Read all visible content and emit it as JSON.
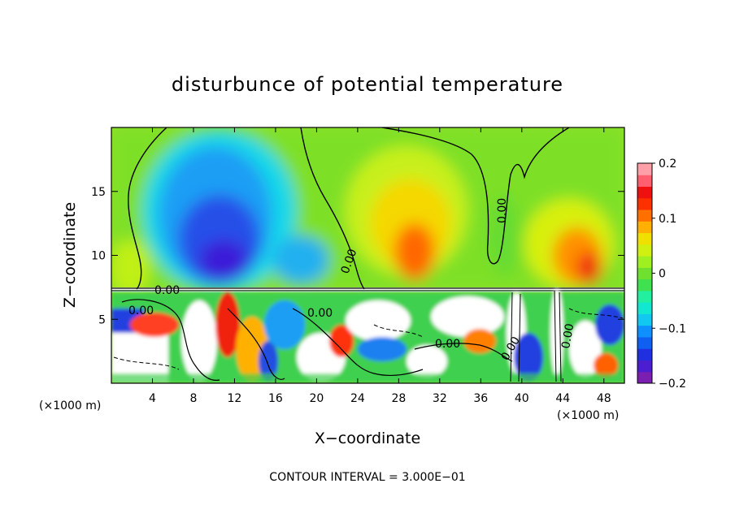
{
  "chart_data": {
    "type": "heatmap",
    "title": "disturbunce of potential temperature",
    "xlabel": "X−coordinate",
    "ylabel": "Z−coordinate",
    "x_unit": "(×1000 m)",
    "x_unit_right": "(×1000 m)",
    "contour_interval": "CONTOUR INTERVAL = 3.000E−01",
    "xlim": [
      0,
      50
    ],
    "ylim": [
      0,
      20
    ],
    "x_ticks": [
      4,
      8,
      12,
      16,
      20,
      24,
      28,
      32,
      36,
      40,
      44,
      48
    ],
    "x_tick_labels": [
      "4",
      "8",
      "12",
      "16",
      "20",
      "24",
      "28",
      "32",
      "36",
      "40",
      "44",
      "48"
    ],
    "y_ticks": [
      5,
      10,
      15
    ],
    "y_tick_labels": [
      "5",
      "10",
      "15"
    ],
    "colorbar": {
      "range": [
        -0.2,
        0.2
      ],
      "ticks": [
        0.2,
        0.1,
        0,
        -0.1,
        -0.2
      ],
      "tick_labels": [
        "0.2",
        "0.1",
        "0",
        "−0.1",
        "−0.2"
      ],
      "colors": [
        "#7a1fb0",
        "#4b1fd0",
        "#2030e0",
        "#1060f0",
        "#1090ff",
        "#10c8f0",
        "#10e8d0",
        "#20f0a0",
        "#40e050",
        "#70e030",
        "#a0f020",
        "#d0f010",
        "#f0e000",
        "#ffb000",
        "#ff7000",
        "#ff3000",
        "#f01010",
        "#ff6070",
        "#ffa0a8"
      ]
    },
    "contour_labels": [
      "0.00",
      "0.00",
      "0.00",
      "0.00",
      "0.00",
      "0.00",
      "0.00",
      "0.00"
    ],
    "stable_layer_top_z": 7.3
  }
}
